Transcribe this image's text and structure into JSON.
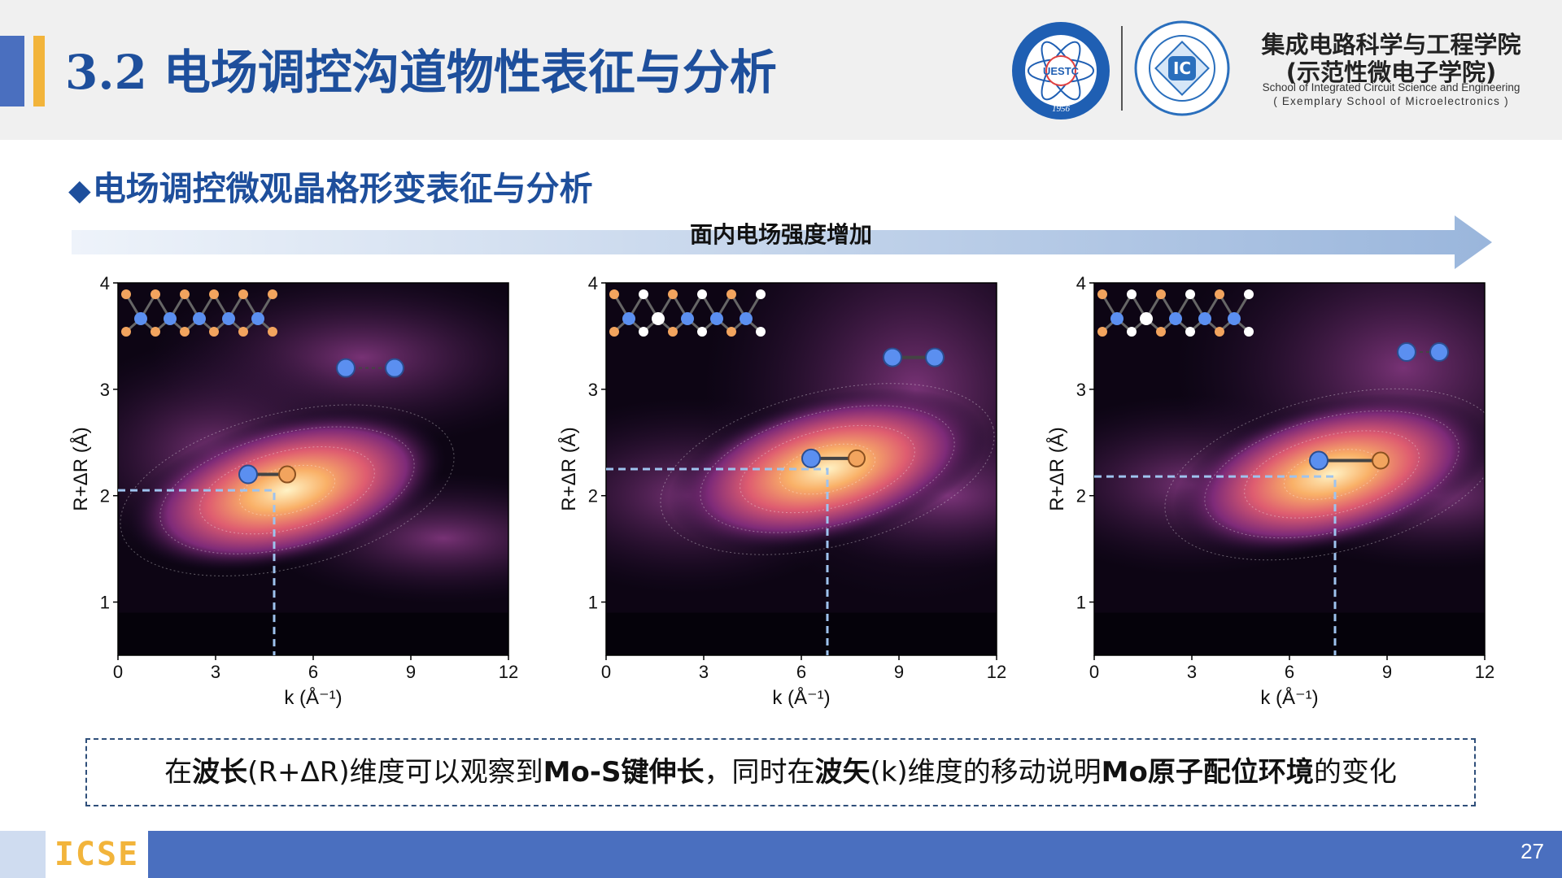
{
  "header": {
    "section_number": "3.2",
    "title": "电场调控沟道物性表征与分析",
    "school_cn_line1": "集成电路科学与工程学院",
    "school_cn_line2": "(示范性微电子学院)",
    "school_en_line1": "School of Integrated Circuit Science and Engineering",
    "school_en_line2": "( Exemplary School of Microelectronics )",
    "logo1_text": "UESTC",
    "logo1_year": "1956",
    "logo2_text": "IC"
  },
  "subtitle": {
    "bullet": "◆",
    "text": "电场调控微观晶格形变表征与分析"
  },
  "arrow_label": "面内电场强度增加",
  "chart_data": [
    {
      "type": "heatmap",
      "title": "",
      "xlabel": "k (Å⁻¹)",
      "ylabel": "R+ΔR (Å)",
      "xlim": [
        0,
        12
      ],
      "ylim": [
        0.5,
        4
      ],
      "xticks": [
        "0",
        "3",
        "6",
        "9",
        "12"
      ],
      "yticks": [
        "1",
        "2",
        "3",
        "4"
      ],
      "peak": {
        "k": 5.2,
        "r": 2.05
      },
      "marker": {
        "k": 4.8,
        "r": 2.05
      },
      "bond_upper": {
        "k1": 7.0,
        "k2": 8.5,
        "r": 3.2,
        "dashed": true
      },
      "bond_main": {
        "k1": 4.0,
        "k2": 5.2,
        "r": 2.2
      }
    },
    {
      "type": "heatmap",
      "title": "",
      "xlabel": "k (Å⁻¹)",
      "ylabel": "R+ΔR (Å)",
      "xlim": [
        0,
        12
      ],
      "ylim": [
        0.5,
        4
      ],
      "xticks": [
        "0",
        "3",
        "6",
        "9",
        "12"
      ],
      "yticks": [
        "1",
        "2",
        "3",
        "4"
      ],
      "peak": {
        "k": 6.8,
        "r": 2.25
      },
      "marker": {
        "k": 6.8,
        "r": 2.25
      },
      "bond_upper": {
        "k1": 8.8,
        "k2": 10.1,
        "r": 3.3,
        "dashed": false
      },
      "bond_main": {
        "k1": 6.3,
        "k2": 7.7,
        "r": 2.35
      }
    },
    {
      "type": "heatmap",
      "title": "",
      "xlabel": "k (Å⁻¹)",
      "ylabel": "R+ΔR (Å)",
      "xlim": [
        0,
        12
      ],
      "ylim": [
        0.5,
        4
      ],
      "xticks": [
        "0",
        "3",
        "6",
        "9",
        "12"
      ],
      "yticks": [
        "1",
        "2",
        "3",
        "4"
      ],
      "peak": {
        "k": 7.3,
        "r": 2.2
      },
      "marker": {
        "k": 7.4,
        "r": 2.18
      },
      "bond_upper": {
        "k1": 9.6,
        "k2": 10.6,
        "r": 3.35,
        "dashed": true
      },
      "bond_main": {
        "k1": 6.9,
        "k2": 8.8,
        "r": 2.33
      }
    }
  ],
  "caption": {
    "p1": "在",
    "b1": "波长",
    "p2": "(R+ΔR)维度可以观察到",
    "b2": "Mo-S键伸长",
    "p3": "，同时在",
    "b3": "波矢",
    "p4": "(k)维度的移动说明",
    "b4": "Mo原子配位环境",
    "p5": "的变化"
  },
  "footer": {
    "logo_text": "ICSE",
    "page_number": "27"
  },
  "colors": {
    "title_blue": "#1e4f9c",
    "accent_gold": "#f2b43b",
    "accent_blue": "#4a6fbf"
  }
}
